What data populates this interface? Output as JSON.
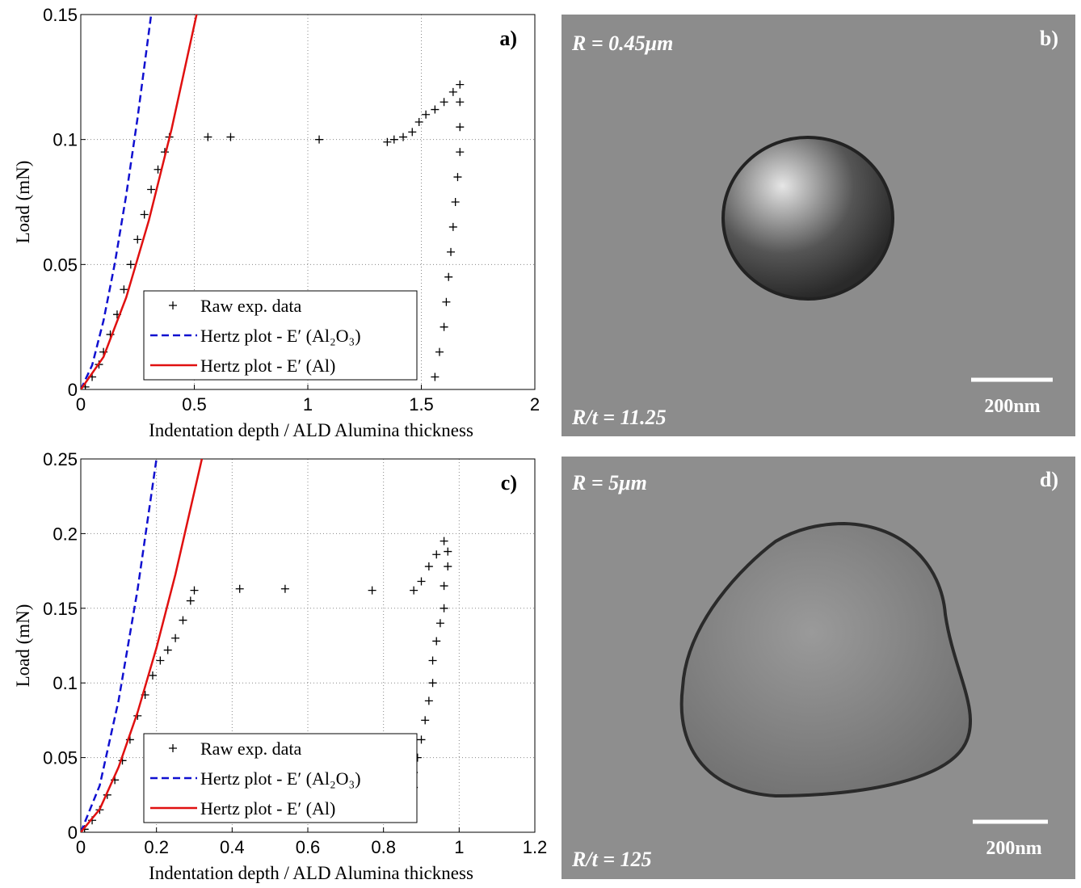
{
  "chart_data": [
    {
      "type": "line",
      "panel_label": "a)",
      "xlabel": "Indentation depth / ALD Alumina thickness",
      "ylabel": "Load (mN)",
      "xlim": [
        0,
        2
      ],
      "ylim": [
        0,
        0.15
      ],
      "xticks": [
        0,
        0.5,
        1,
        1.5,
        2
      ],
      "yticks": [
        0,
        0.05,
        0.1,
        0.15
      ],
      "grid": true,
      "legend": "lower center",
      "series": [
        {
          "name": "Raw exp. data",
          "color": "#000000",
          "style": "plus",
          "x": [
            0.02,
            0.05,
            0.08,
            0.1,
            0.13,
            0.16,
            0.19,
            0.22,
            0.25,
            0.28,
            0.31,
            0.34,
            0.37,
            0.39,
            0.56,
            0.66,
            1.05,
            1.35,
            1.38,
            1.42,
            1.46,
            1.49,
            1.52,
            1.56,
            1.6,
            1.64,
            1.67,
            1.67,
            1.67,
            1.67,
            1.66,
            1.65,
            1.64,
            1.63,
            1.62,
            1.61,
            1.6,
            1.58,
            1.56
          ],
          "values": [
            0.001,
            0.005,
            0.01,
            0.015,
            0.022,
            0.03,
            0.04,
            0.05,
            0.06,
            0.07,
            0.08,
            0.088,
            0.095,
            0.101,
            0.101,
            0.101,
            0.1,
            0.099,
            0.1,
            0.101,
            0.103,
            0.107,
            0.11,
            0.112,
            0.115,
            0.119,
            0.122,
            0.115,
            0.105,
            0.095,
            0.085,
            0.075,
            0.065,
            0.055,
            0.045,
            0.035,
            0.025,
            0.015,
            0.005
          ]
        },
        {
          "name": "Hertz plot - E′ (Al₂O₃)",
          "color": "#1010d0",
          "style": "dashed",
          "x": [
            0,
            0.05,
            0.1,
            0.15,
            0.2,
            0.25,
            0.31
          ],
          "values": [
            0,
            0.0097,
            0.0275,
            0.0505,
            0.0777,
            0.1086,
            0.15
          ]
        },
        {
          "name": "Hertz plot - E′ (Al)",
          "color": "#e01010",
          "style": "solid",
          "x": [
            0,
            0.1,
            0.2,
            0.3,
            0.4,
            0.51
          ],
          "values": [
            0,
            0.013,
            0.0368,
            0.0677,
            0.1042,
            0.15
          ]
        }
      ]
    },
    {
      "type": "line",
      "panel_label": "c)",
      "xlabel": "Indentation depth / ALD Alumina thickness",
      "ylabel": "Load (mN)",
      "xlim": [
        0,
        1.2
      ],
      "ylim": [
        0,
        0.25
      ],
      "xticks": [
        0,
        0.2,
        0.4,
        0.6,
        0.8,
        1,
        1.2
      ],
      "yticks": [
        0,
        0.05,
        0.1,
        0.15,
        0.2,
        0.25
      ],
      "grid": true,
      "legend": "lower center",
      "series": [
        {
          "name": "Raw exp. data",
          "color": "#000000",
          "style": "plus",
          "x": [
            0.01,
            0.03,
            0.05,
            0.07,
            0.09,
            0.11,
            0.13,
            0.15,
            0.17,
            0.19,
            0.21,
            0.23,
            0.25,
            0.27,
            0.29,
            0.3,
            0.42,
            0.54,
            0.77,
            0.88,
            0.9,
            0.92,
            0.94,
            0.96,
            0.97,
            0.97,
            0.96,
            0.96,
            0.95,
            0.94,
            0.93,
            0.93,
            0.92,
            0.91,
            0.9,
            0.89,
            0.88,
            0.88,
            0.87,
            0.87
          ],
          "values": [
            0.002,
            0.008,
            0.015,
            0.025,
            0.035,
            0.048,
            0.062,
            0.078,
            0.092,
            0.105,
            0.115,
            0.122,
            0.13,
            0.142,
            0.155,
            0.162,
            0.163,
            0.163,
            0.162,
            0.162,
            0.168,
            0.178,
            0.186,
            0.195,
            0.188,
            0.178,
            0.165,
            0.15,
            0.14,
            0.128,
            0.115,
            0.1,
            0.088,
            0.075,
            0.062,
            0.05,
            0.04,
            0.03,
            0.02,
            0.01
          ]
        },
        {
          "name": "Hertz plot - E′ (Al₂O₃)",
          "color": "#1010d0",
          "style": "dashed",
          "x": [
            0,
            0.05,
            0.1,
            0.15,
            0.2
          ],
          "values": [
            0,
            0.0313,
            0.0884,
            0.1624,
            0.25
          ]
        },
        {
          "name": "Hertz plot - E′ (Al)",
          "color": "#e01010",
          "style": "solid",
          "x": [
            0,
            0.05,
            0.1,
            0.15,
            0.2,
            0.25,
            0.32
          ],
          "values": [
            0,
            0.0154,
            0.0437,
            0.0802,
            0.1235,
            0.1726,
            0.25
          ]
        }
      ]
    }
  ],
  "images": [
    {
      "panel_label": "b)",
      "radius": "R = 0.45μm",
      "ratio": "R/t = 11.25",
      "scale": "200nm"
    },
    {
      "panel_label": "d)",
      "radius": "R = 5μm",
      "ratio": "R/t = 125",
      "scale": "200nm"
    }
  ]
}
